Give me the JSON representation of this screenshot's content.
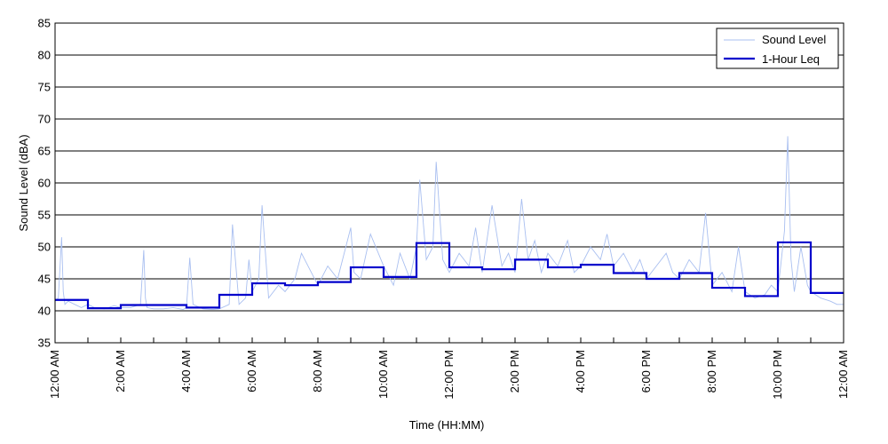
{
  "chart_data": {
    "type": "line",
    "xlabel": "Time (HH:MM)",
    "ylabel": "Sound Level (dBA)",
    "ylim": [
      35,
      85
    ],
    "xlim": [
      0,
      24
    ],
    "yticks": [
      35,
      40,
      45,
      50,
      55,
      60,
      65,
      70,
      75,
      80,
      85
    ],
    "xticks": [
      {
        "hour": 0,
        "label": "12:00 AM"
      },
      {
        "hour": 2,
        "label": "2:00 AM"
      },
      {
        "hour": 4,
        "label": "4:00 AM"
      },
      {
        "hour": 6,
        "label": "6:00 AM"
      },
      {
        "hour": 8,
        "label": "8:00 AM"
      },
      {
        "hour": 10,
        "label": "10:00 AM"
      },
      {
        "hour": 12,
        "label": "12:00 PM"
      },
      {
        "hour": 14,
        "label": "2:00 PM"
      },
      {
        "hour": 16,
        "label": "4:00 PM"
      },
      {
        "hour": 18,
        "label": "6:00 PM"
      },
      {
        "hour": 20,
        "label": "8:00 PM"
      },
      {
        "hour": 22,
        "label": "10:00 PM"
      },
      {
        "hour": 24,
        "label": "12:00 AM"
      }
    ],
    "grid": "horizontal",
    "legend_position": "top-right",
    "series": [
      {
        "name": "Sound Level",
        "style": "thin line",
        "color": "#a9bff0",
        "x": [
          0,
          0.1,
          0.2,
          0.25,
          0.3,
          0.4,
          0.6,
          0.8,
          1.0,
          1.2,
          1.5,
          1.8,
          2.0,
          2.3,
          2.6,
          2.7,
          2.75,
          2.8,
          3.0,
          3.3,
          3.6,
          3.9,
          4.0,
          4.1,
          4.2,
          4.5,
          4.8,
          5.0,
          5.3,
          5.4,
          5.6,
          5.8,
          5.9,
          6.0,
          6.2,
          6.3,
          6.5,
          6.8,
          7.0,
          7.3,
          7.5,
          7.8,
          8.0,
          8.3,
          8.6,
          9.0,
          9.1,
          9.3,
          9.6,
          10.0,
          10.3,
          10.5,
          10.8,
          11.0,
          11.1,
          11.3,
          11.5,
          11.6,
          11.8,
          12.0,
          12.3,
          12.6,
          12.8,
          13.0,
          13.3,
          13.6,
          13.8,
          14.0,
          14.2,
          14.4,
          14.6,
          14.8,
          15.0,
          15.3,
          15.6,
          15.8,
          16.0,
          16.3,
          16.6,
          16.8,
          17.0,
          17.3,
          17.6,
          17.8,
          18.0,
          18.3,
          18.6,
          18.8,
          19.0,
          19.3,
          19.6,
          19.8,
          20.0,
          20.3,
          20.6,
          20.8,
          21.0,
          21.3,
          21.6,
          21.8,
          22.0,
          22.2,
          22.3,
          22.4,
          22.5,
          22.7,
          22.9,
          23.0,
          23.3,
          23.6,
          23.8,
          24.0
        ],
        "y": [
          41.5,
          42,
          51.5,
          43,
          41,
          41.5,
          41,
          40.5,
          41,
          40.5,
          40.3,
          40.8,
          40.5,
          40.5,
          41,
          49.5,
          42,
          40.5,
          40.3,
          40.3,
          40.5,
          40.2,
          40.5,
          48.3,
          41,
          40.3,
          40.2,
          40.3,
          41,
          53.5,
          41,
          42,
          48,
          43,
          45,
          56.5,
          42,
          44,
          43,
          45,
          49,
          46,
          44,
          47,
          45,
          53,
          46,
          45,
          52,
          47,
          44,
          49,
          45,
          50,
          60.5,
          48,
          50,
          63.3,
          48,
          46,
          49,
          47,
          53,
          46,
          56.5,
          47,
          49,
          46,
          57.5,
          48,
          51,
          46,
          49,
          47,
          51,
          46,
          47,
          50,
          48,
          52,
          47,
          49,
          46,
          48,
          45,
          47,
          49,
          46,
          45,
          48,
          46,
          55.3,
          44,
          46,
          43,
          50,
          43,
          42,
          42.5,
          44,
          43,
          52.5,
          67.3,
          48,
          43,
          50,
          44,
          43,
          42,
          41.5,
          41,
          41
        ]
      },
      {
        "name": "1-Hour Leq",
        "style": "step line",
        "color": "#0000cc",
        "x": [
          0,
          1,
          2,
          3,
          4,
          5,
          6,
          7,
          8,
          9,
          10,
          11,
          12,
          13,
          14,
          15,
          16,
          17,
          18,
          19,
          20,
          21,
          22,
          23
        ],
        "y": [
          41.7,
          40.4,
          40.9,
          40.9,
          40.5,
          42.5,
          44.3,
          44.0,
          44.5,
          46.8,
          45.3,
          50.6,
          46.8,
          46.5,
          48.0,
          46.8,
          47.2,
          45.9,
          45.0,
          45.9,
          43.6,
          42.3,
          50.7,
          42.8
        ]
      }
    ]
  }
}
